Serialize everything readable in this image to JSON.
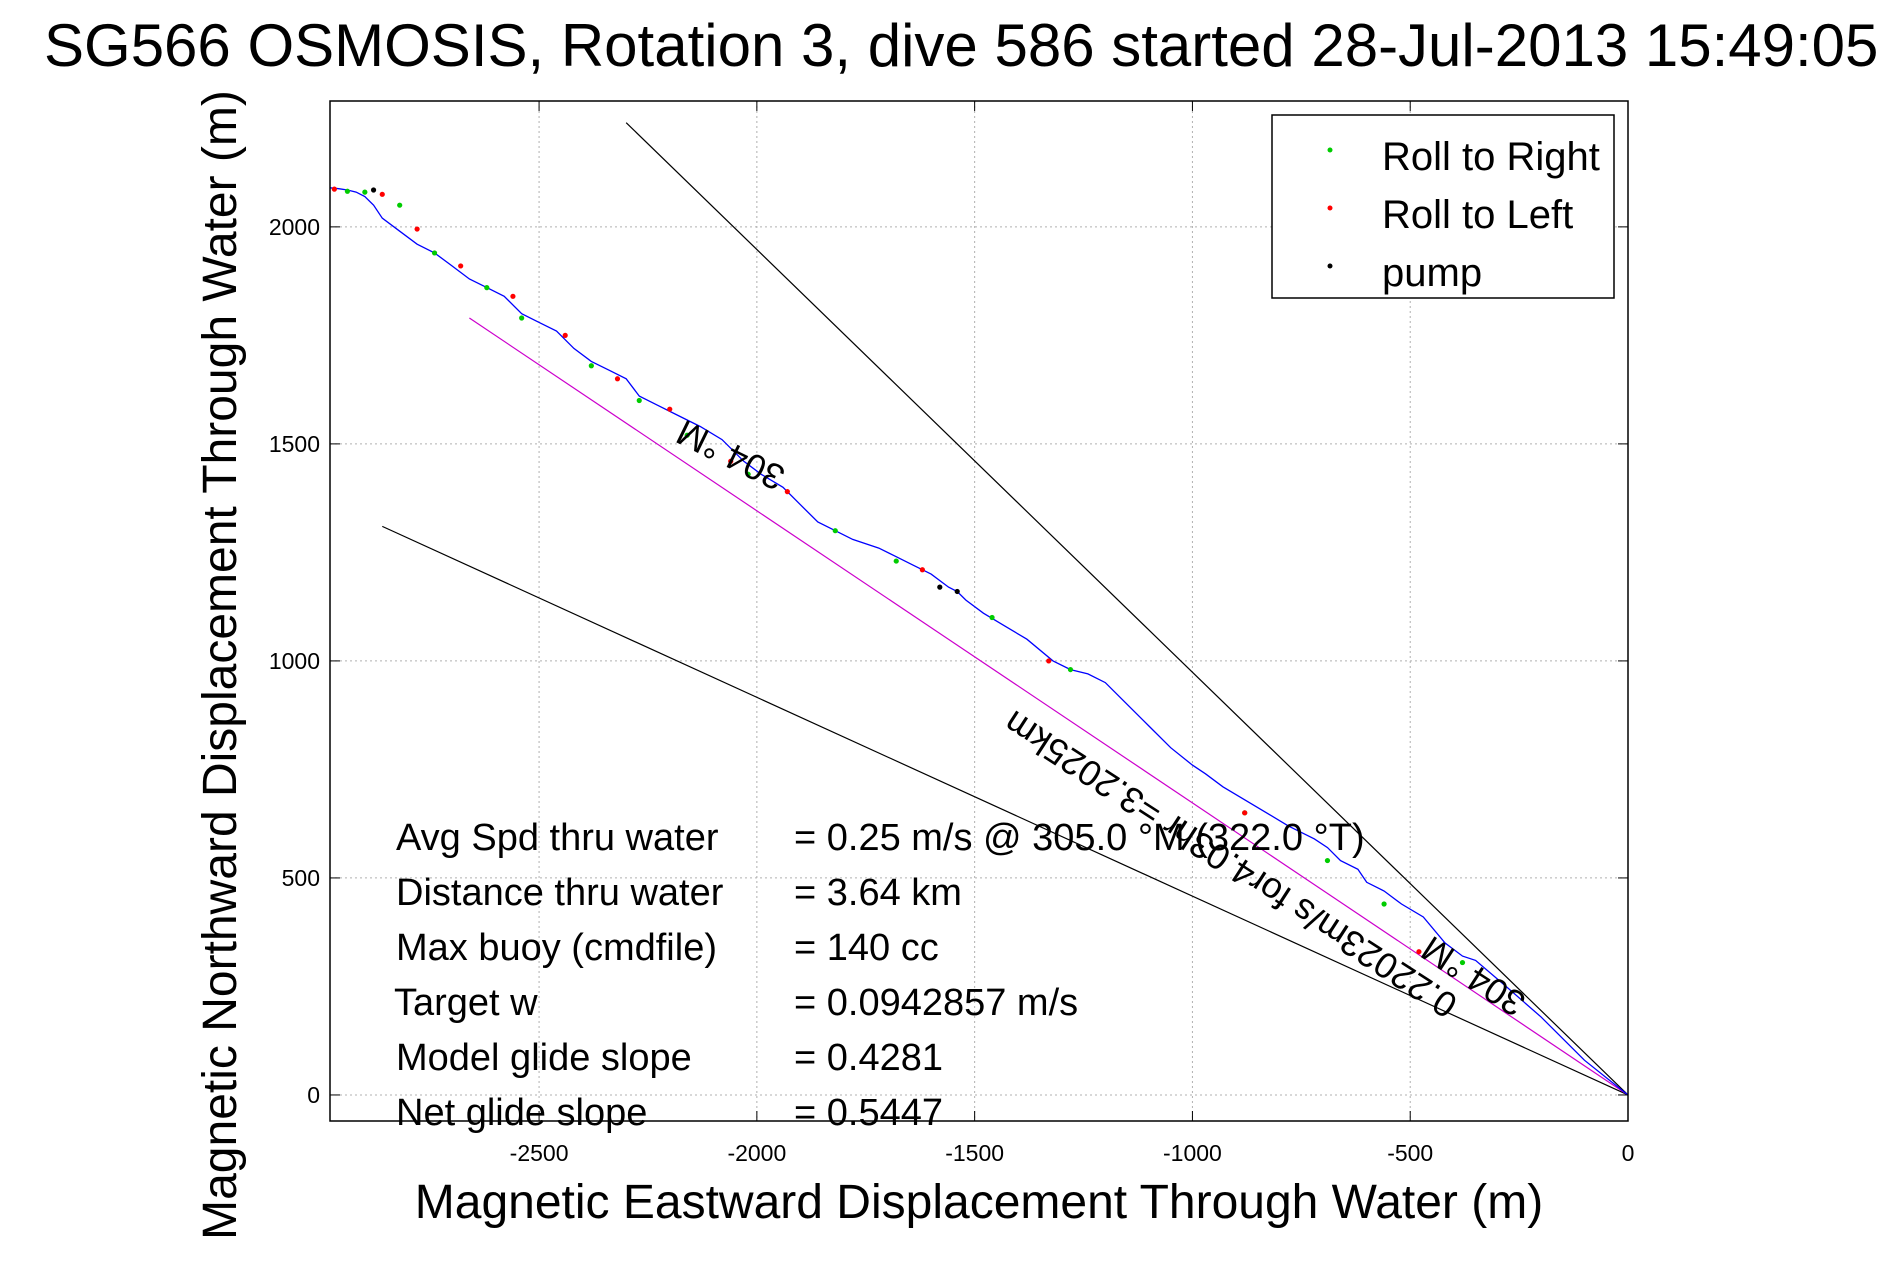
{
  "chart_data": {
    "type": "line",
    "title": "SG566 OSMOSIS, Rotation 3, dive 586 started 28-Jul-2013 15:49:05",
    "xlabel": "Magnetic Eastward Displacement Through Water (m)",
    "ylabel": "Magnetic Northward Displacement Through Water (m)",
    "xlim": [
      -2980,
      0
    ],
    "ylim": [
      -60,
      2290
    ],
    "xticks": [
      -2500,
      -2000,
      -1500,
      -1000,
      -500,
      0
    ],
    "yticks": [
      0,
      500,
      1000,
      1500,
      2000
    ],
    "grid": true,
    "legend_position": "top-right",
    "legend": [
      {
        "label": "Roll to Right",
        "color": "#00cc00"
      },
      {
        "label": "Roll to Left",
        "color": "#ff0000"
      },
      {
        "label": "pump",
        "color": "#000000"
      }
    ],
    "track": {
      "color": "#0000ff",
      "x": [
        0,
        -100,
        -200,
        -280,
        -350,
        -380,
        -420,
        -470,
        -520,
        -560,
        -600,
        -620,
        -660,
        -690,
        -720,
        -780,
        -830,
        -880,
        -930,
        -970,
        -1000,
        -1050,
        -1100,
        -1150,
        -1200,
        -1240,
        -1280,
        -1320,
        -1380,
        -1430,
        -1480,
        -1520,
        -1540,
        -1560,
        -1600,
        -1640,
        -1680,
        -1720,
        -1780,
        -1820,
        -1860,
        -1900,
        -1940,
        -1990,
        -2030,
        -2080,
        -2130,
        -2190,
        -2230,
        -2270,
        -2300,
        -2340,
        -2380,
        -2420,
        -2460,
        -2500,
        -2540,
        -2580,
        -2620,
        -2660,
        -2700,
        -2740,
        -2780,
        -2820,
        -2860,
        -2880,
        -2900,
        -2920,
        -2940,
        -2960,
        -2980
      ],
      "y": [
        0,
        80,
        180,
        250,
        310,
        320,
        350,
        410,
        440,
        470,
        490,
        520,
        540,
        570,
        590,
        620,
        650,
        680,
        710,
        740,
        760,
        800,
        850,
        900,
        950,
        970,
        980,
        1000,
        1050,
        1080,
        1110,
        1140,
        1160,
        1170,
        1200,
        1220,
        1240,
        1260,
        1280,
        1300,
        1320,
        1360,
        1400,
        1430,
        1460,
        1510,
        1540,
        1570,
        1590,
        1610,
        1650,
        1670,
        1690,
        1720,
        1760,
        1780,
        1800,
        1840,
        1860,
        1880,
        1910,
        1940,
        1960,
        1990,
        2020,
        2050,
        2070,
        2080,
        2085,
        2088,
        2090
      ]
    },
    "roll_right_points": {
      "x": [
        -2940,
        -2900,
        -2820,
        -2740,
        -2620,
        -2540,
        -2380,
        -2270,
        -2160,
        -2020,
        -1820,
        -1680,
        -1460,
        -1280,
        -880,
        -690,
        -560,
        -380
      ],
      "y": [
        2082,
        2080,
        2050,
        1940,
        1860,
        1790,
        1680,
        1600,
        1520,
        1430,
        1300,
        1230,
        1100,
        980,
        650,
        540,
        440,
        305
      ]
    },
    "roll_left_points": {
      "x": [
        -2970,
        -2860,
        -2780,
        -2680,
        -2560,
        -2440,
        -2320,
        -2200,
        -2060,
        -1930,
        -1620,
        -1330,
        -880,
        -480
      ],
      "y": [
        2087,
        2075,
        1995,
        1910,
        1840,
        1750,
        1650,
        1580,
        1460,
        1390,
        1210,
        1000,
        650,
        330
      ],
      "color": "#ff0000"
    },
    "pump_points": {
      "x": [
        -2880,
        -1580,
        -1540
      ],
      "y": [
        2085,
        1170,
        1160
      ]
    },
    "reference_lines": [
      {
        "name": "upper-bound",
        "x": [
          0,
          -2300
        ],
        "y": [
          0,
          2240
        ],
        "color": "#000000"
      },
      {
        "name": "lower-bound",
        "x": [
          0,
          -2860
        ],
        "y": [
          0,
          1310
        ],
        "color": "#000000"
      },
      {
        "name": "heading",
        "x": [
          0,
          -2660
        ],
        "y": [
          0,
          1790
        ],
        "color": "#cc00cc"
      }
    ],
    "annotations": [
      {
        "text": "304 °M"
      },
      {
        "text": "304 °M"
      },
      {
        "text": "0.22023m/s for4.03hr =3.2025km"
      }
    ],
    "stats": [
      {
        "label": "Avg Spd thru water",
        "value": "=  0.25 m/s @ 305.0 °M (322.0 °T)"
      },
      {
        "label": "Distance thru water",
        "value": "=  3.64 km"
      },
      {
        "label": "Max buoy (cmdfile)",
        "value": "= 140 cc"
      },
      {
        "label": "Target w",
        "value": "= 0.0942857 m/s"
      },
      {
        "label": "Model glide slope",
        "value": "= 0.4281"
      },
      {
        "label": "Net glide slope",
        "value": "= 0.5447"
      }
    ]
  }
}
